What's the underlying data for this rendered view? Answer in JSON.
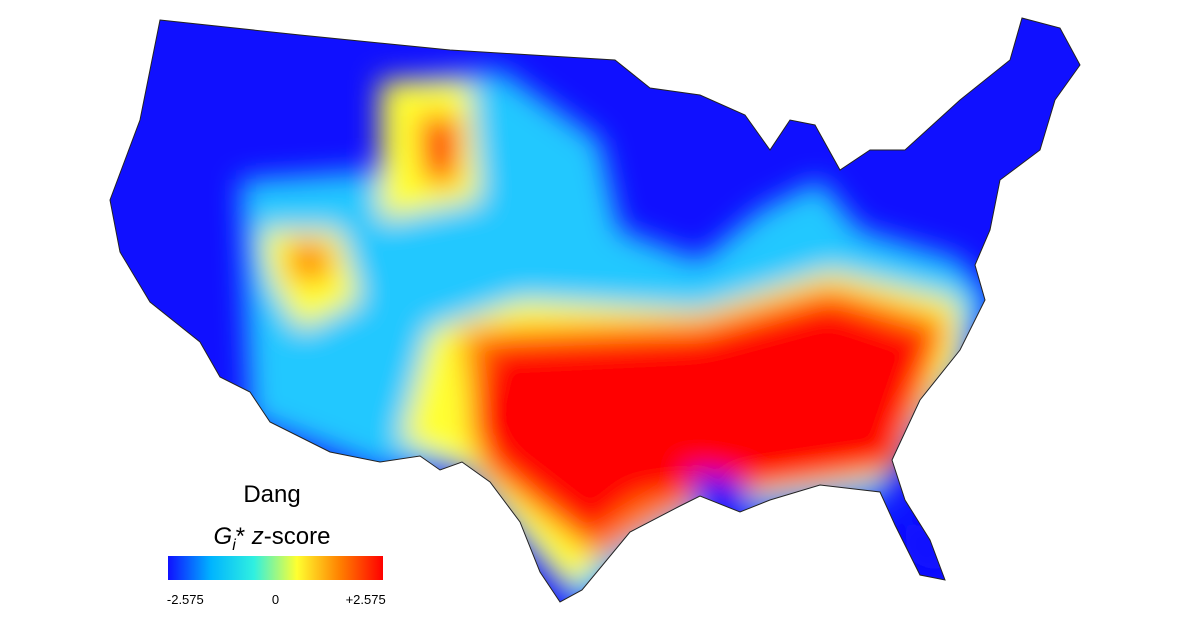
{
  "legend": {
    "title": "Dang",
    "subtitle_parts": [
      "G",
      "i",
      "*",
      "z",
      "-score"
    ],
    "colors": [
      "#1010ff",
      "#00b4ff",
      "#30f0e0",
      "#ffff30",
      "#ff8000",
      "#ff0000"
    ],
    "range": [
      -3.07,
      3.07
    ],
    "ticks": [
      -2.575,
      0,
      {
        "value": 2.575,
        "label": "+2.575"
      }
    ]
  }
}
